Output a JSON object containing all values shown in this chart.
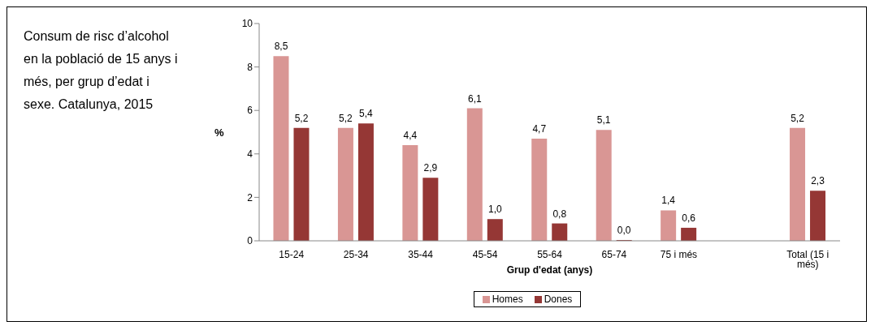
{
  "chart_data": {
    "type": "bar",
    "title": "Consum de risc d’alcohol en la població de 15 anys i més, per grup d’edat i sexe. Catalunya, 2015",
    "xlabel": "Grup d'edat (anys)",
    "ylabel": "%",
    "categories": [
      "15-24",
      "25-34",
      "35-44",
      "45-54",
      "55-64",
      "65-74",
      "75 i més",
      null,
      "Total (15 i més)"
    ],
    "series": [
      {
        "name": "Homes",
        "color": "#d99694",
        "values": [
          8.5,
          5.2,
          4.4,
          6.1,
          4.7,
          5.1,
          1.4,
          null,
          5.2
        ],
        "value_labels": [
          "8,5",
          "5,2",
          "4,4",
          "6,1",
          "4,7",
          "5,1",
          "1,4",
          null,
          "5,2"
        ]
      },
      {
        "name": "Dones",
        "color": "#953735",
        "values": [
          5.2,
          5.4,
          2.9,
          1.0,
          0.8,
          0.0,
          0.6,
          null,
          2.3
        ],
        "value_labels": [
          "5,2",
          "5,4",
          "2,9",
          "1,0",
          "0,8",
          "0,0",
          "0,6",
          null,
          "2,3"
        ]
      }
    ],
    "ylim": [
      0,
      10
    ],
    "yticks": [
      0,
      2,
      4,
      6,
      8,
      10
    ],
    "grid": false,
    "legend": "bottom"
  }
}
